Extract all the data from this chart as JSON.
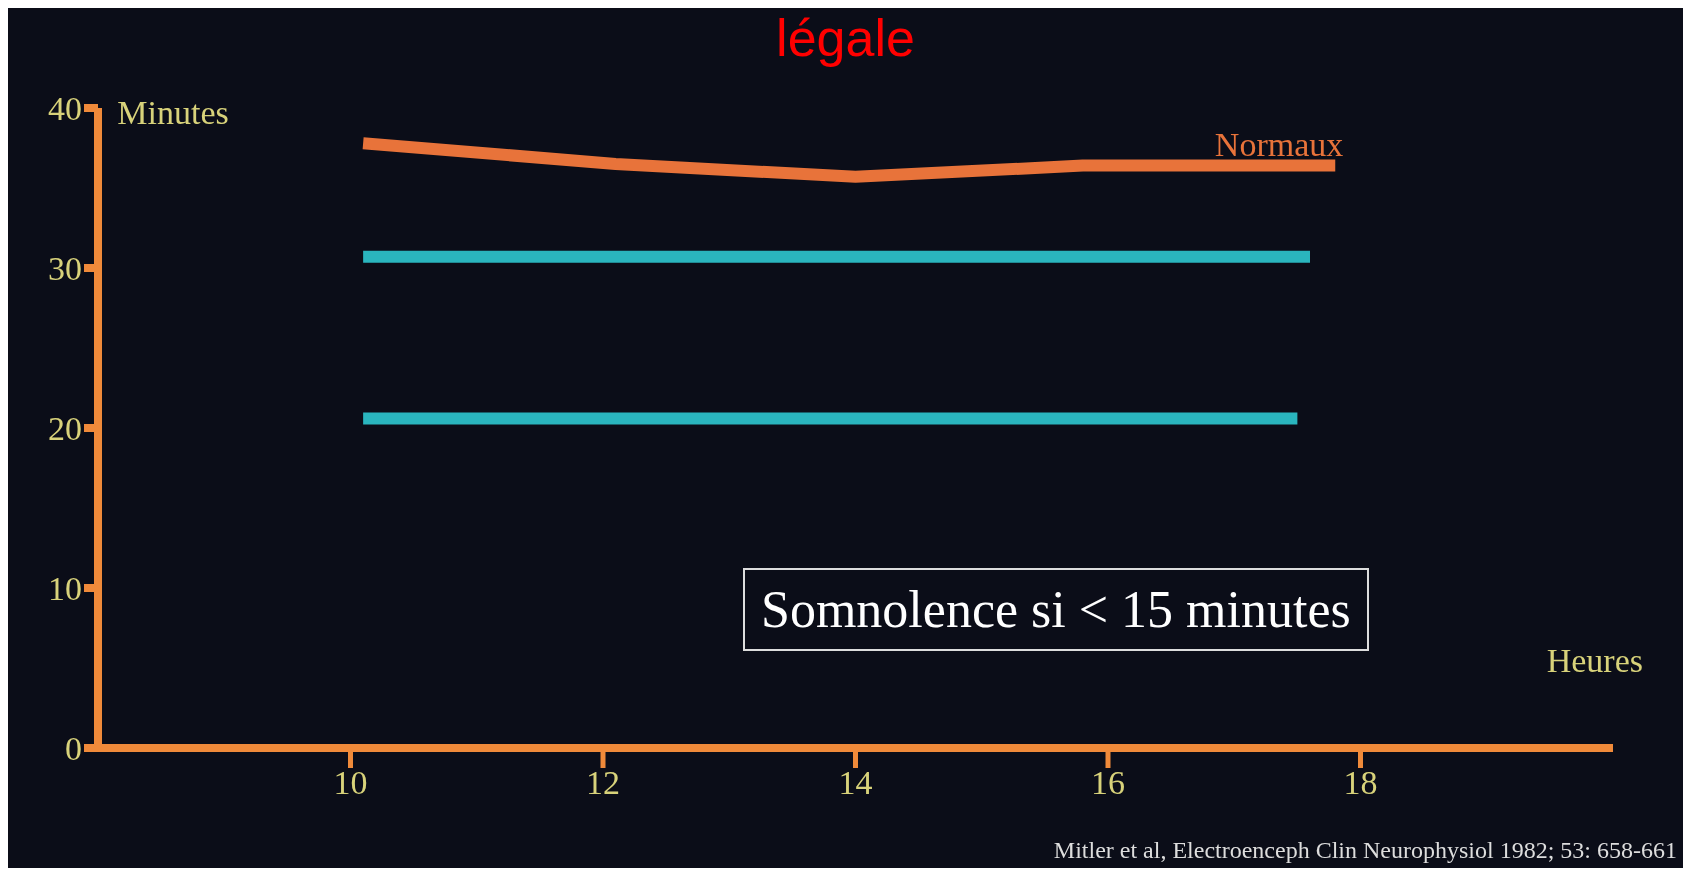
{
  "chart_data": {
    "type": "line",
    "title": "légale",
    "xlabel": "Heures",
    "ylabel": "Minutes",
    "xlim": [
      8,
      20
    ],
    "ylim": [
      0,
      40
    ],
    "xticks": [
      10,
      12,
      14,
      16,
      18
    ],
    "yticks": [
      0,
      10,
      20,
      30,
      40
    ],
    "marker": "none",
    "line_style": "solid",
    "series": [
      {
        "name": "Normaux",
        "color": "#e8733a",
        "x": [
          10.1,
          12.1,
          14,
          15.8,
          17.8
        ],
        "values": [
          37.8,
          36.5,
          35.7,
          36.4,
          36.4
        ]
      },
      {
        "color": "#2ab5be",
        "x": [
          10.1,
          17.6
        ],
        "values": [
          30.7,
          30.7
        ]
      },
      {
        "color": "#2ab5be",
        "x": [
          10.1,
          17.5
        ],
        "values": [
          20.6,
          20.6
        ]
      }
    ],
    "annotations": [
      "Somnolence si < 15 minutes",
      "Mitler et al,  Electroenceph Clin Neurophysiol 1982; 53: 658-661"
    ]
  }
}
